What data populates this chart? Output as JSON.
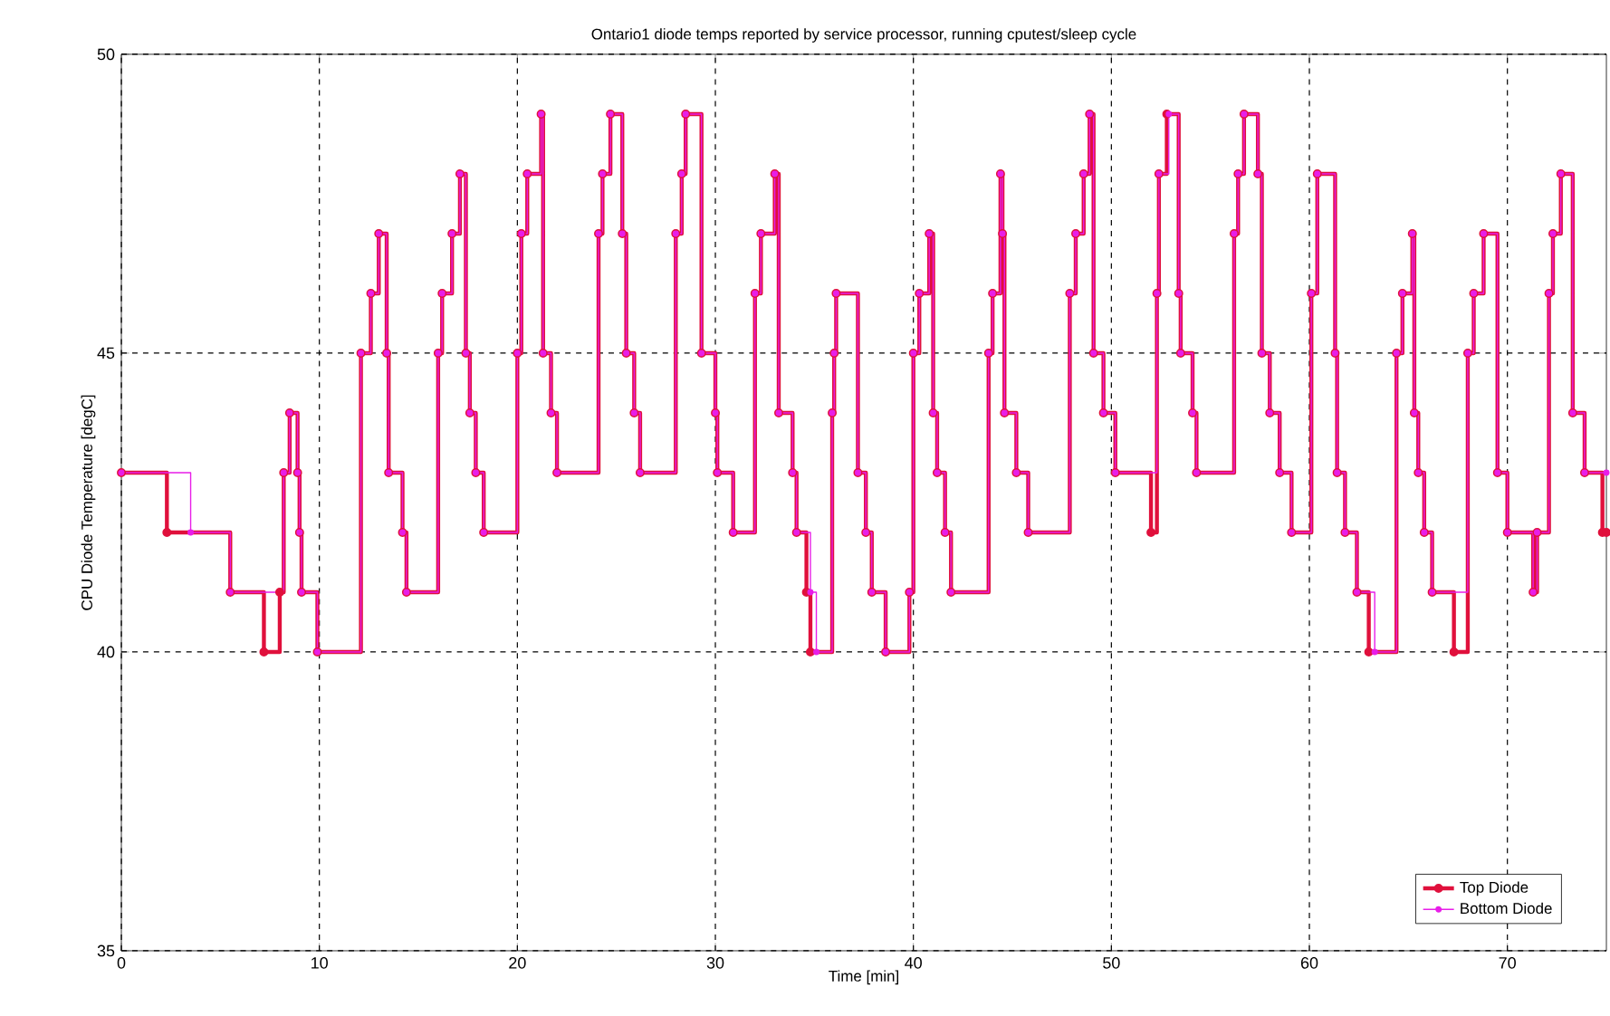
{
  "chart_data": {
    "type": "step",
    "title": "Ontario1 diode temps reported by service processor, running cputest/sleep cycle",
    "xlabel": "Time [min]",
    "ylabel": "CPU Diode Temperature [degC]",
    "xlim": [
      0,
      75
    ],
    "ylim": [
      35,
      50
    ],
    "xticks": [
      0,
      10,
      20,
      30,
      40,
      50,
      60,
      70
    ],
    "yticks": [
      35,
      40,
      45,
      50
    ],
    "grid": true,
    "legend": "bottom right",
    "marker": "circle",
    "line_style": "solid",
    "series": [
      {
        "name": "Top Diode",
        "color": "#e0103c",
        "x": [
          0,
          2.3,
          5.5,
          7.2,
          8.0,
          8.2,
          8.5,
          8.9,
          9.0,
          9.1,
          9.9,
          12.1,
          12.6,
          13.0,
          13.4,
          13.5,
          14.2,
          14.4,
          16.0,
          16.2,
          16.7,
          17.1,
          17.4,
          17.6,
          17.9,
          18.3,
          20.0,
          20.2,
          20.5,
          21.2,
          21.3,
          21.7,
          22.0,
          24.1,
          24.3,
          24.7,
          25.3,
          25.5,
          25.9,
          26.2,
          28.0,
          28.3,
          28.5,
          29.3,
          30.0,
          30.1,
          30.9,
          32.0,
          32.3,
          33.0,
          33.2,
          33.9,
          34.1,
          34.6,
          34.8,
          35.9,
          36.0,
          36.1,
          37.2,
          37.6,
          37.9,
          38.6,
          39.8,
          40.0,
          40.3,
          40.8,
          41.0,
          41.2,
          41.6,
          41.9,
          43.8,
          44.0,
          44.4,
          44.5,
          44.6,
          45.2,
          45.8,
          47.9,
          48.2,
          48.6,
          48.9,
          49.1,
          49.6,
          50.2,
          52.0,
          52.3,
          52.4,
          52.8,
          53.4,
          53.5,
          54.1,
          54.3,
          56.2,
          56.4,
          56.7,
          57.4,
          57.6,
          58.0,
          58.5,
          59.1,
          60.1,
          60.4,
          61.3,
          61.4,
          61.8,
          62.4,
          63.0,
          64.4,
          64.7,
          65.2,
          65.3,
          65.5,
          65.8,
          66.2,
          67.3,
          68.0,
          68.3,
          68.8,
          69.5,
          70.0,
          71.3,
          71.5,
          72.1,
          72.3,
          72.7,
          73.3,
          73.9,
          74.8,
          75
        ],
        "values": [
          43,
          42,
          41,
          40,
          41,
          43,
          44,
          43,
          42,
          41,
          40,
          45,
          46,
          47,
          45,
          43,
          42,
          41,
          45,
          46,
          47,
          48,
          45,
          44,
          43,
          42,
          45,
          47,
          48,
          49,
          45,
          44,
          43,
          47,
          48,
          49,
          47,
          45,
          44,
          43,
          47,
          48,
          49,
          45,
          44,
          43,
          42,
          46,
          47,
          48,
          44,
          43,
          42,
          41,
          40,
          44,
          45,
          46,
          43,
          42,
          41,
          40,
          41,
          45,
          46,
          47,
          44,
          43,
          42,
          41,
          45,
          46,
          48,
          47,
          44,
          43,
          42,
          46,
          47,
          48,
          49,
          45,
          44,
          43,
          42,
          46,
          48,
          49,
          46,
          45,
          44,
          43,
          47,
          48,
          49,
          48,
          45,
          44,
          43,
          42,
          46,
          48,
          45,
          43,
          42,
          41,
          40,
          45,
          46,
          47,
          44,
          43,
          42,
          41,
          40,
          45,
          46,
          47,
          43,
          42,
          41,
          42,
          46,
          47,
          48,
          44,
          43,
          42,
          42
        ]
      },
      {
        "name": "Bottom Diode",
        "color": "#e81ee8",
        "x": [
          0,
          3.5,
          5.5,
          8.2,
          8.5,
          8.9,
          9.0,
          9.1,
          9.9,
          12.1,
          12.6,
          13.0,
          13.4,
          13.5,
          14.2,
          14.4,
          16.0,
          16.2,
          16.7,
          17.1,
          17.4,
          17.6,
          17.9,
          18.3,
          20.0,
          20.2,
          20.5,
          21.2,
          21.3,
          21.7,
          22.0,
          24.1,
          24.3,
          24.7,
          25.3,
          25.5,
          25.9,
          26.2,
          28.0,
          28.3,
          28.5,
          29.3,
          30.0,
          30.1,
          30.9,
          32.0,
          32.3,
          33.0,
          33.2,
          33.9,
          34.1,
          34.8,
          35.1,
          35.9,
          36.0,
          36.1,
          37.2,
          37.6,
          37.9,
          38.6,
          39.8,
          40.0,
          40.3,
          40.8,
          41.0,
          41.2,
          41.6,
          41.9,
          43.8,
          44.0,
          44.4,
          44.5,
          44.6,
          45.2,
          45.8,
          47.9,
          48.2,
          48.6,
          48.9,
          49.1,
          49.6,
          50.2,
          52.3,
          52.4,
          52.9,
          53.4,
          53.5,
          54.1,
          54.3,
          56.2,
          56.4,
          56.7,
          57.4,
          57.6,
          58.0,
          58.5,
          59.1,
          60.1,
          60.4,
          61.3,
          61.4,
          61.8,
          62.4,
          63.3,
          64.4,
          64.7,
          65.2,
          65.3,
          65.5,
          65.8,
          66.2,
          68.0,
          68.3,
          68.8,
          69.5,
          70.0,
          71.3,
          71.5,
          72.1,
          72.3,
          72.7,
          73.3,
          73.9,
          75
        ],
        "values": [
          43,
          42,
          41,
          43,
          44,
          43,
          42,
          41,
          40,
          45,
          46,
          47,
          45,
          43,
          42,
          41,
          45,
          46,
          47,
          48,
          45,
          44,
          43,
          42,
          45,
          47,
          48,
          49,
          45,
          44,
          43,
          47,
          48,
          49,
          47,
          45,
          44,
          43,
          47,
          48,
          49,
          45,
          44,
          43,
          42,
          46,
          47,
          48,
          44,
          43,
          42,
          41,
          40,
          44,
          45,
          46,
          43,
          42,
          41,
          40,
          41,
          45,
          46,
          47,
          44,
          43,
          42,
          41,
          45,
          46,
          48,
          47,
          44,
          43,
          42,
          46,
          47,
          48,
          49,
          45,
          44,
          43,
          46,
          48,
          49,
          46,
          45,
          44,
          43,
          47,
          48,
          49,
          48,
          45,
          44,
          43,
          42,
          46,
          48,
          45,
          43,
          42,
          41,
          40,
          45,
          46,
          47,
          44,
          43,
          42,
          41,
          45,
          46,
          47,
          43,
          42,
          41,
          42,
          46,
          47,
          48,
          44,
          43,
          43
        ]
      }
    ]
  }
}
